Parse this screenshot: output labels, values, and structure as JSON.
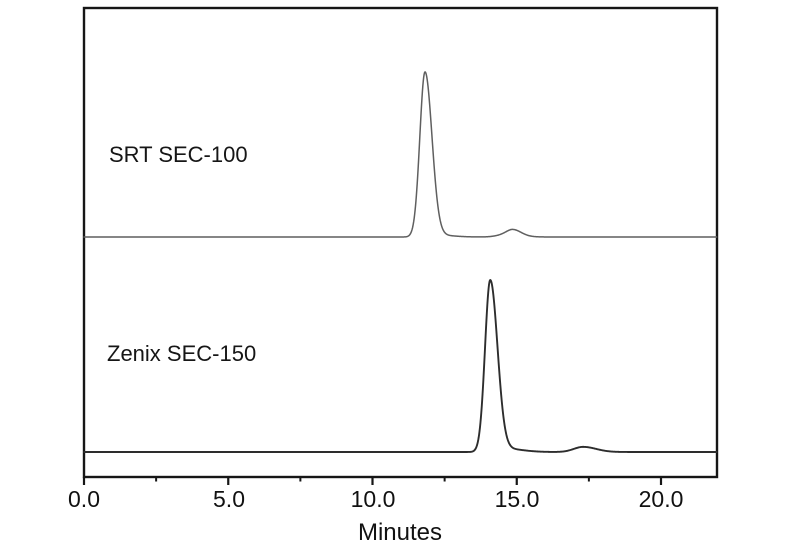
{
  "figure": {
    "background_color": "#ffffff",
    "axis_color": "#161616",
    "text_color": "#111111"
  },
  "chart_data": {
    "type": "line",
    "title": "",
    "xlabel": "Minutes",
    "ylabel": "",
    "xlim": [
      0,
      21.94
    ],
    "grid": false,
    "legend_position": "none",
    "x_ticks_major": [
      0,
      5,
      10,
      15,
      20
    ],
    "x_tick_labels": [
      "0.0",
      "5.0",
      "10.0",
      "15.0",
      "20.0"
    ],
    "x_ticks_minor": [
      2.5,
      7.5,
      12.5,
      17.5
    ],
    "series": [
      {
        "label": "SRT SEC-100",
        "color": "#5f5f5f",
        "main_peak_minutes": 11.8,
        "minor_peak_minutes": 14.9,
        "peaks": [
          {
            "center": 11.82,
            "height": 1.0,
            "sigma_left": 0.18,
            "sigma_right": 0.24
          },
          {
            "center": 12.2,
            "height": 0.012,
            "sigma_left": 0.35,
            "sigma_right": 0.55
          },
          {
            "center": 14.6,
            "height": 0.013,
            "sigma_left": 0.3,
            "sigma_right": 0.5
          },
          {
            "center": 14.87,
            "height": 0.035,
            "sigma_left": 0.22,
            "sigma_right": 0.28
          }
        ]
      },
      {
        "label": "Zenix SEC-150",
        "color": "#2d2d2d",
        "main_peak_minutes": 14.1,
        "minor_peak_minutes": 17.3,
        "peaks": [
          {
            "center": 14.08,
            "height": 1.0,
            "sigma_left": 0.18,
            "sigma_right": 0.25
          },
          {
            "center": 14.55,
            "height": 0.02,
            "sigma_left": 0.3,
            "sigma_right": 0.6
          },
          {
            "center": 17.3,
            "height": 0.03,
            "sigma_left": 0.32,
            "sigma_right": 0.45
          }
        ]
      }
    ]
  }
}
